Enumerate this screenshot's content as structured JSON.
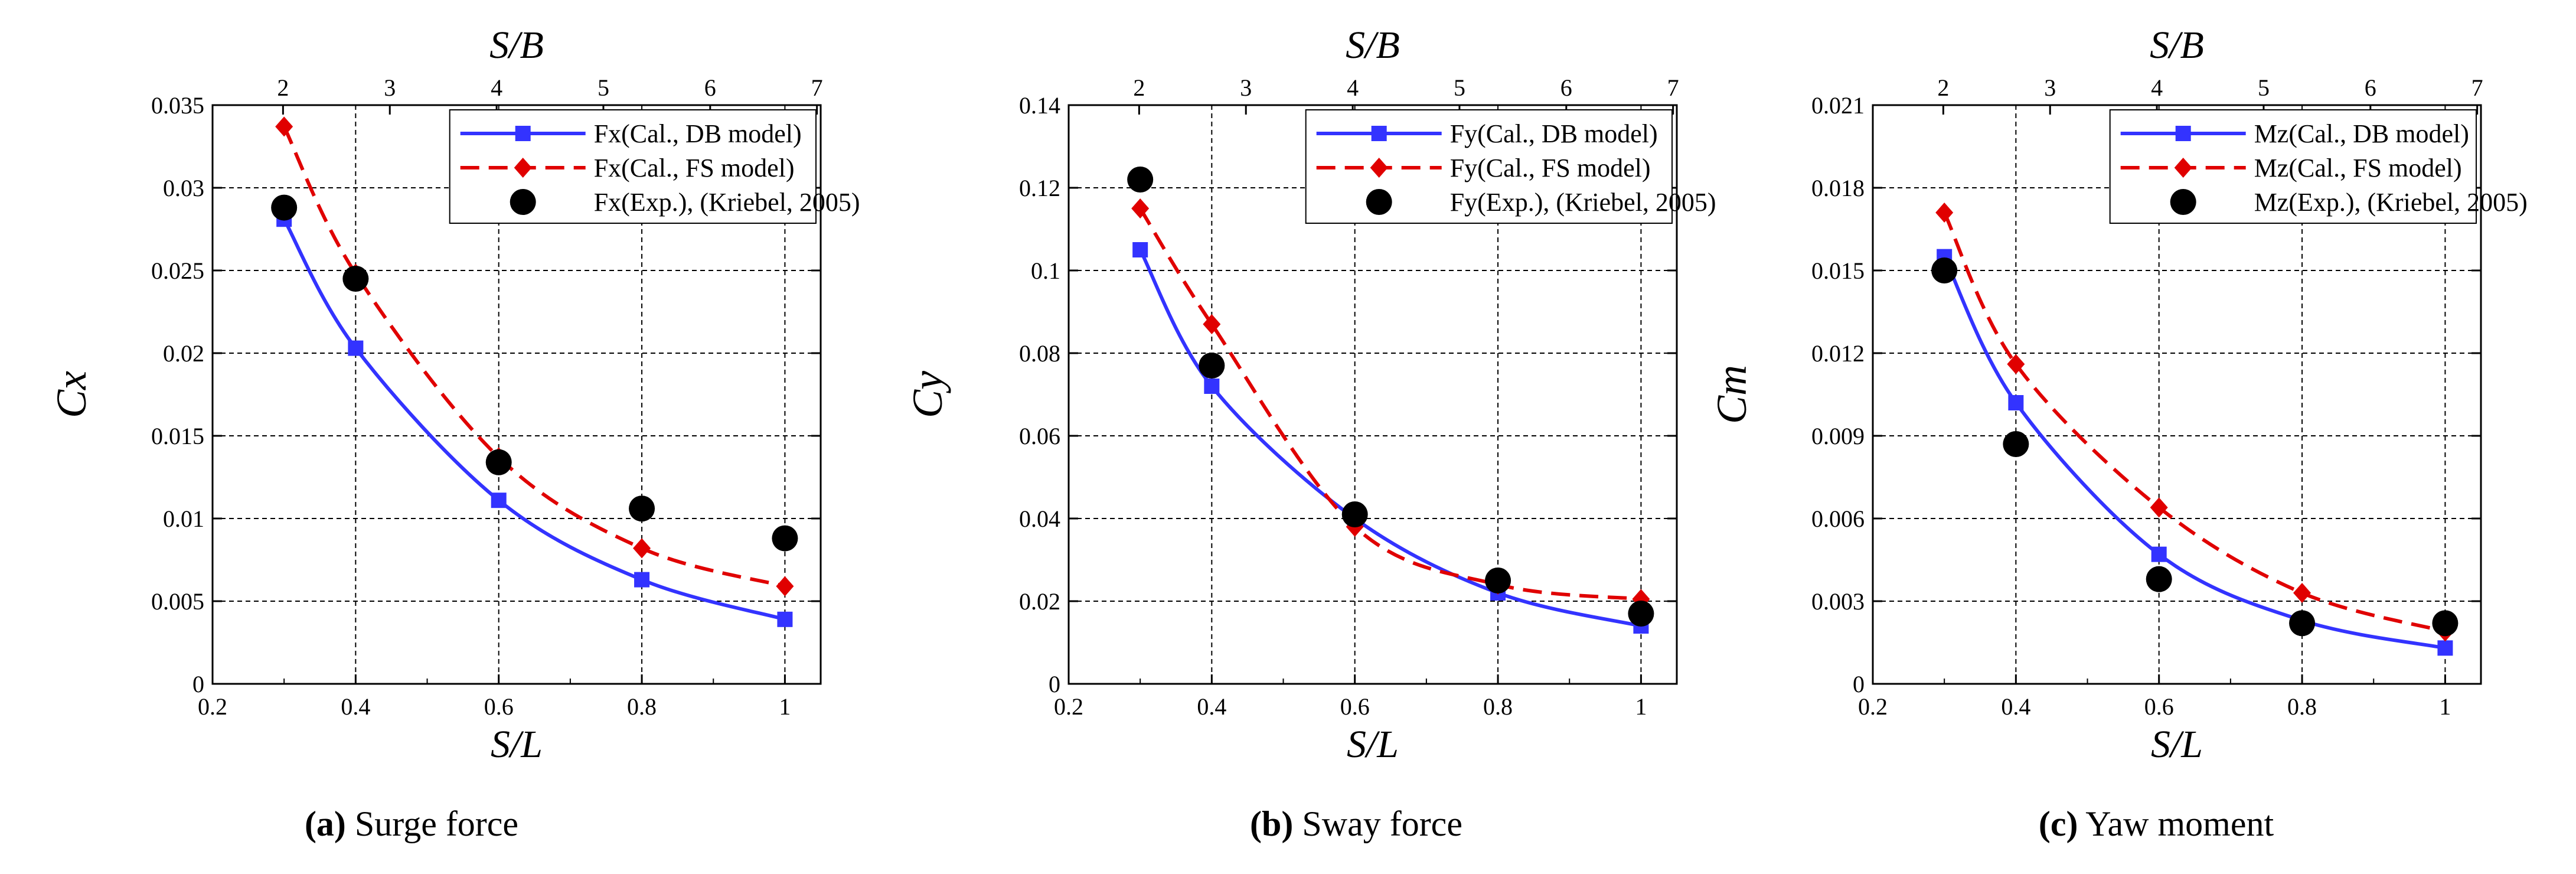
{
  "colors": {
    "db": "#3333ff",
    "fs": "#e00000",
    "exp": "#000000",
    "grid": "#000000"
  },
  "chart_data": [
    {
      "type": "line",
      "caption": {
        "letter": "(a)",
        "text": " Surge force"
      },
      "x_top_label": "S/B",
      "xlabel": "S/L",
      "ylabel": "Cx",
      "xlim": [
        0.2,
        1.05
      ],
      "ylim": [
        0,
        0.035
      ],
      "x_ticks": [
        0.2,
        0.4,
        0.6,
        0.8,
        1
      ],
      "x_tick_labels": [
        "0.2",
        "0.4",
        "0.6",
        "0.8",
        "1"
      ],
      "y_ticks": [
        0,
        0.005,
        0.01,
        0.015,
        0.02,
        0.025,
        0.03,
        0.035
      ],
      "y_tick_labels": [
        "0",
        "0.005",
        "0.01",
        "0.015",
        "0.02",
        "0.025",
        "0.03",
        "0.035"
      ],
      "top_ticks": [
        2,
        3,
        4,
        5,
        6,
        7
      ],
      "top_tick_labels": [
        "2",
        "3",
        "4",
        "5",
        "6",
        "7"
      ],
      "grid": true,
      "legend_position": "top-right",
      "series": [
        {
          "name": "Fx(Cal., DB model)",
          "style": "solid",
          "marker": "square",
          "color": "#3333ff",
          "x": [
            0.3,
            0.4,
            0.6,
            0.8,
            1.0
          ],
          "y": [
            0.0281,
            0.0203,
            0.0111,
            0.0063,
            0.0039
          ]
        },
        {
          "name": "Fx(Cal., FS model)",
          "style": "dashed",
          "marker": "diamond",
          "color": "#e00000",
          "x": [
            0.3,
            0.4,
            0.6,
            0.8,
            1.0
          ],
          "y": [
            0.0337,
            0.0248,
            0.0137,
            0.0082,
            0.0059
          ]
        },
        {
          "name": "Fx(Exp.), (Kriebel, 2005)",
          "style": "none",
          "marker": "circle",
          "color": "#000000",
          "x": [
            0.3,
            0.4,
            0.6,
            0.8,
            1.0
          ],
          "y": [
            0.0288,
            0.0245,
            0.0134,
            0.0106,
            0.0088
          ]
        }
      ]
    },
    {
      "type": "line",
      "caption": {
        "letter": "(b)",
        "text": " Sway force"
      },
      "x_top_label": "S/B",
      "xlabel": "S/L",
      "ylabel": "Cy",
      "xlim": [
        0.2,
        1.05
      ],
      "ylim": [
        0,
        0.14
      ],
      "x_ticks": [
        0.2,
        0.4,
        0.6,
        0.8,
        1
      ],
      "x_tick_labels": [
        "0.2",
        "0.4",
        "0.6",
        "0.8",
        "1"
      ],
      "y_ticks": [
        0,
        0.02,
        0.04,
        0.06,
        0.08,
        0.1,
        0.12,
        0.14
      ],
      "y_tick_labels": [
        "0",
        "0.02",
        "0.04",
        "0.06",
        "0.08",
        "0.1",
        "0.12",
        "0.14"
      ],
      "top_ticks": [
        2,
        3,
        4,
        5,
        6,
        7
      ],
      "top_tick_labels": [
        "2",
        "3",
        "4",
        "5",
        "6",
        "7"
      ],
      "grid": true,
      "legend_position": "top-right",
      "series": [
        {
          "name": "Fy(Cal., DB model)",
          "style": "solid",
          "marker": "square",
          "color": "#3333ff",
          "x": [
            0.3,
            0.4,
            0.6,
            0.8,
            1.0
          ],
          "y": [
            0.105,
            0.072,
            0.04,
            0.022,
            0.014
          ]
        },
        {
          "name": "Fy(Cal., FS model)",
          "style": "dashed",
          "marker": "diamond",
          "color": "#e00000",
          "x": [
            0.3,
            0.4,
            0.6,
            0.8,
            1.0
          ],
          "y": [
            0.115,
            0.087,
            0.038,
            0.024,
            0.0205
          ]
        },
        {
          "name": "Fy(Exp.), (Kriebel, 2005)",
          "style": "none",
          "marker": "circle",
          "color": "#000000",
          "x": [
            0.3,
            0.4,
            0.6,
            0.8,
            1.0
          ],
          "y": [
            0.122,
            0.077,
            0.041,
            0.025,
            0.017
          ]
        }
      ]
    },
    {
      "type": "line",
      "caption": {
        "letter": "(c)",
        "text": " Yaw moment"
      },
      "x_top_label": "S/B",
      "xlabel": "S/L",
      "ylabel": "Cm",
      "xlim": [
        0.2,
        1.05
      ],
      "ylim": [
        0,
        0.021
      ],
      "x_ticks": [
        0.2,
        0.4,
        0.6,
        0.8,
        1
      ],
      "x_tick_labels": [
        "0.2",
        "0.4",
        "0.6",
        "0.8",
        "1"
      ],
      "y_ticks": [
        0,
        0.003,
        0.006,
        0.009,
        0.012,
        0.015,
        0.018,
        0.021
      ],
      "y_tick_labels": [
        "0",
        "0.003",
        "0.006",
        "0.009",
        "0.012",
        "0.015",
        "0.018",
        "0.021"
      ],
      "top_ticks": [
        2,
        3,
        4,
        5,
        6,
        7
      ],
      "top_tick_labels": [
        "2",
        "3",
        "4",
        "5",
        "6",
        "7"
      ],
      "grid": true,
      "legend_position": "top-right",
      "series": [
        {
          "name": "Mz(Cal., DB model)",
          "style": "solid",
          "marker": "square",
          "color": "#3333ff",
          "x": [
            0.3,
            0.4,
            0.6,
            0.8,
            1.0
          ],
          "y": [
            0.0155,
            0.0102,
            0.0047,
            0.0023,
            0.0013
          ]
        },
        {
          "name": "Mz(Cal., FS model)",
          "style": "dashed",
          "marker": "diamond",
          "color": "#e00000",
          "x": [
            0.3,
            0.4,
            0.6,
            0.8,
            1.0
          ],
          "y": [
            0.0171,
            0.0116,
            0.0064,
            0.0033,
            0.0019
          ]
        },
        {
          "name": "Mz(Exp.), (Kriebel, 2005)",
          "style": "none",
          "marker": "circle",
          "color": "#000000",
          "x": [
            0.3,
            0.4,
            0.6,
            0.8,
            1.0
          ],
          "y": [
            0.015,
            0.0087,
            0.0038,
            0.0022,
            0.0022
          ]
        }
      ]
    }
  ]
}
